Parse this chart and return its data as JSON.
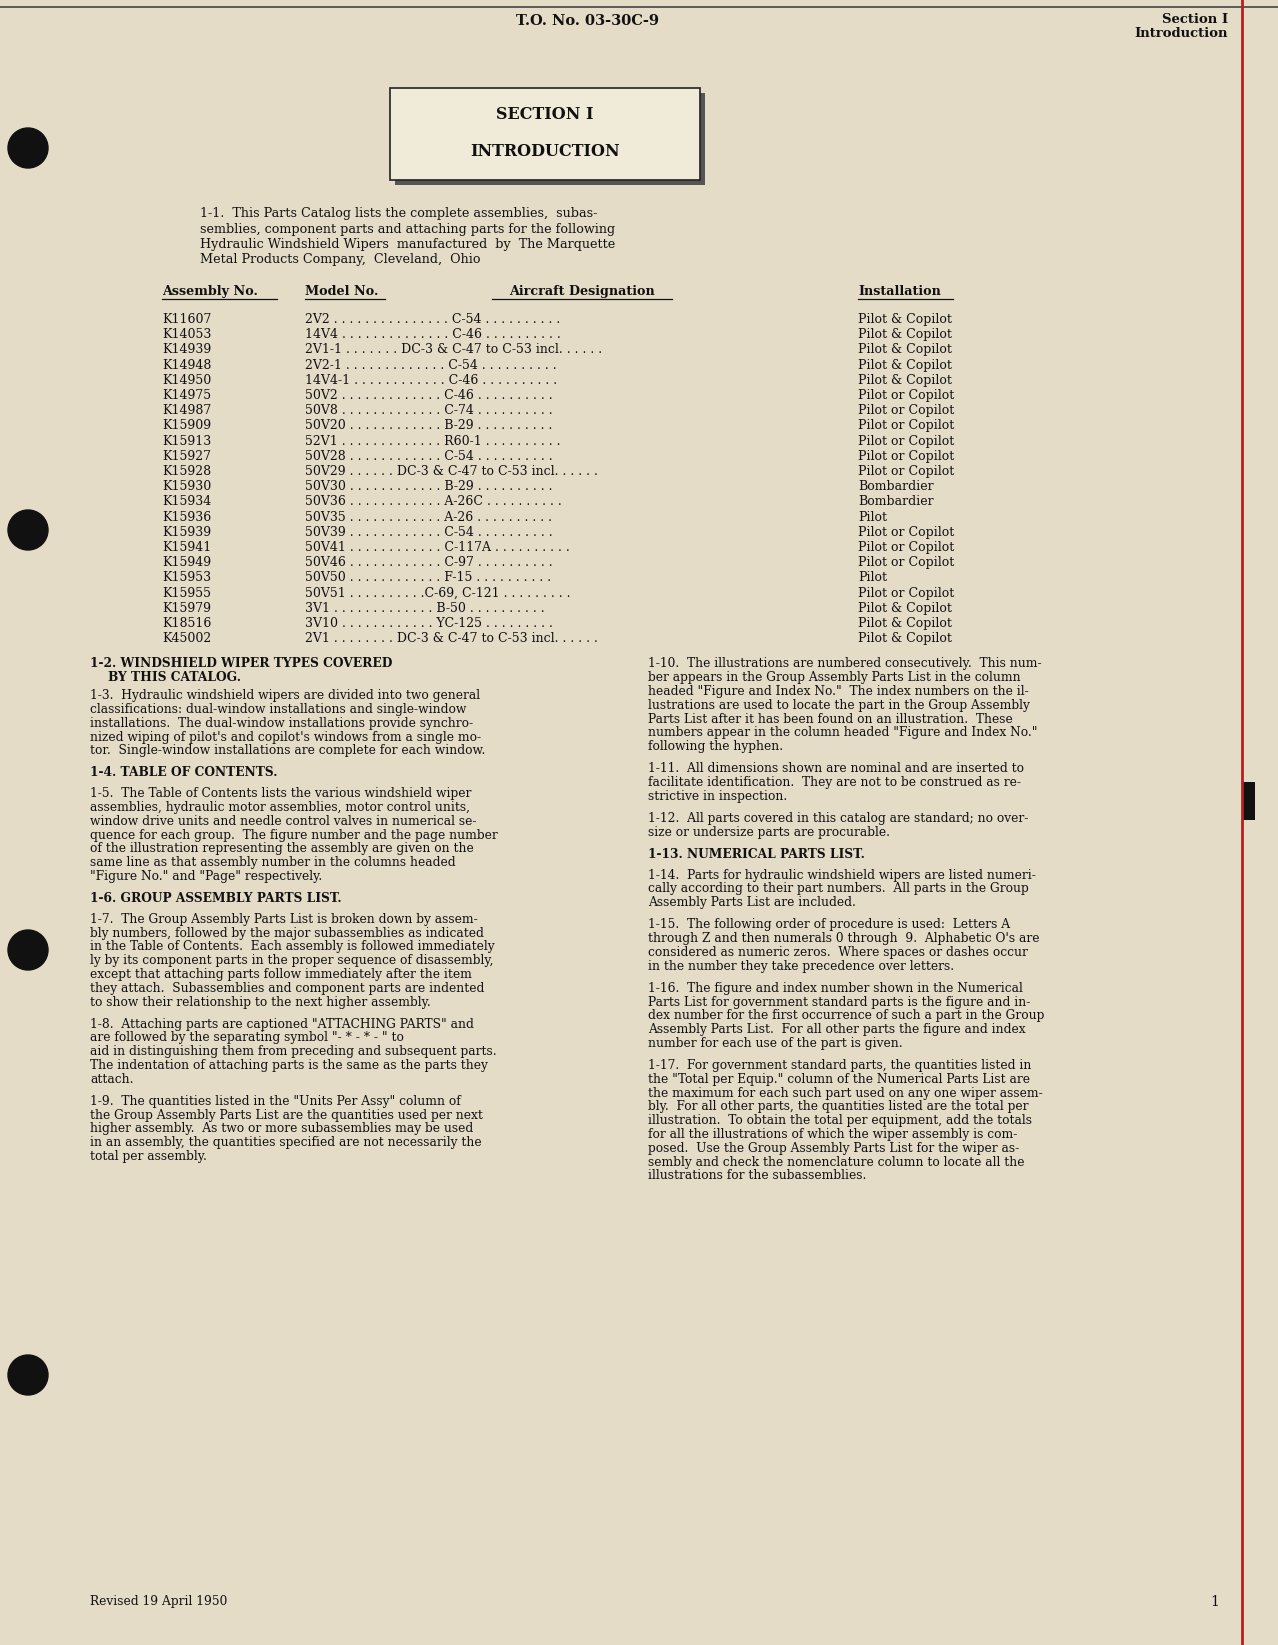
{
  "bg_color": "#e5dcc8",
  "header_text_center": "T.O. No. 03-30C-9",
  "header_text_right_line1": "Section I",
  "header_text_right_line2": "Introduction",
  "section_box_title": "SECTION I",
  "section_box_subtitle": "INTRODUCTION",
  "table_rows": [
    [
      "K11607",
      "2V2 . . . . . . . . . . . . . . . C-54 . . . . . . . . . .",
      "Pilot & Copilot"
    ],
    [
      "K14053",
      "14V4 . . . . . . . . . . . . . . C-46 . . . . . . . . . .",
      "Pilot & Copilot"
    ],
    [
      "K14939",
      "2V1-1 . . . . . . . DC-3 & C-47 to C-53 incl. . . . . .",
      "Pilot & Copilot"
    ],
    [
      "K14948",
      "2V2-1 . . . . . . . . . . . . . C-54 . . . . . . . . . .",
      "Pilot & Copilot"
    ],
    [
      "K14950",
      "14V4-1 . . . . . . . . . . . . C-46 . . . . . . . . . .",
      "Pilot & Copilot"
    ],
    [
      "K14975",
      "50V2 . . . . . . . . . . . . . C-46 . . . . . . . . . .",
      "Pilot or Copilot"
    ],
    [
      "K14987",
      "50V8 . . . . . . . . . . . . . C-74 . . . . . . . . . .",
      "Pilot or Copilot"
    ],
    [
      "K15909",
      "50V20 . . . . . . . . . . . . B-29 . . . . . . . . . .",
      "Pilot or Copilot"
    ],
    [
      "K15913",
      "52V1 . . . . . . . . . . . . . R60-1 . . . . . . . . . .",
      "Pilot or Copilot"
    ],
    [
      "K15927",
      "50V28 . . . . . . . . . . . . C-54 . . . . . . . . . .",
      "Pilot or Copilot"
    ],
    [
      "K15928",
      "50V29 . . . . . . DC-3 & C-47 to C-53 incl. . . . . .",
      "Pilot or Copilot"
    ],
    [
      "K15930",
      "50V30 . . . . . . . . . . . . B-29 . . . . . . . . . .",
      "Bombardier"
    ],
    [
      "K15934",
      "50V36 . . . . . . . . . . . . A-26C . . . . . . . . . .",
      "Bombardier"
    ],
    [
      "K15936",
      "50V35 . . . . . . . . . . . . A-26 . . . . . . . . . .",
      "Pilot"
    ],
    [
      "K15939",
      "50V39 . . . . . . . . . . . . C-54 . . . . . . . . . .",
      "Pilot or Copilot"
    ],
    [
      "K15941",
      "50V41 . . . . . . . . . . . . C-117A . . . . . . . . . .",
      "Pilot or Copilot"
    ],
    [
      "K15949",
      "50V46 . . . . . . . . . . . . C-97 . . . . . . . . . .",
      "Pilot or Copilot"
    ],
    [
      "K15953",
      "50V50 . . . . . . . . . . . . F-15 . . . . . . . . . .",
      "Pilot"
    ],
    [
      "K15955",
      "50V51 . . . . . . . . . .C-69, C-121 . . . . . . . . .",
      "Pilot or Copilot"
    ],
    [
      "K15979",
      "3V1 . . . . . . . . . . . . . B-50 . . . . . . . . . .",
      "Pilot & Copilot"
    ],
    [
      "K18516",
      "3V10 . . . . . . . . . . . . YC-125 . . . . . . . . .",
      "Pilot & Copilot"
    ],
    [
      "K45002",
      "2V1 . . . . . . . . DC-3 & C-47 to C-53 incl. . . . . .",
      "Pilot & Copilot"
    ]
  ],
  "red_line_color": "#b22222",
  "text_color": "#111111",
  "font_family": "serif",
  "revised_text": "Revised 19 April 1950",
  "page_num": "1"
}
